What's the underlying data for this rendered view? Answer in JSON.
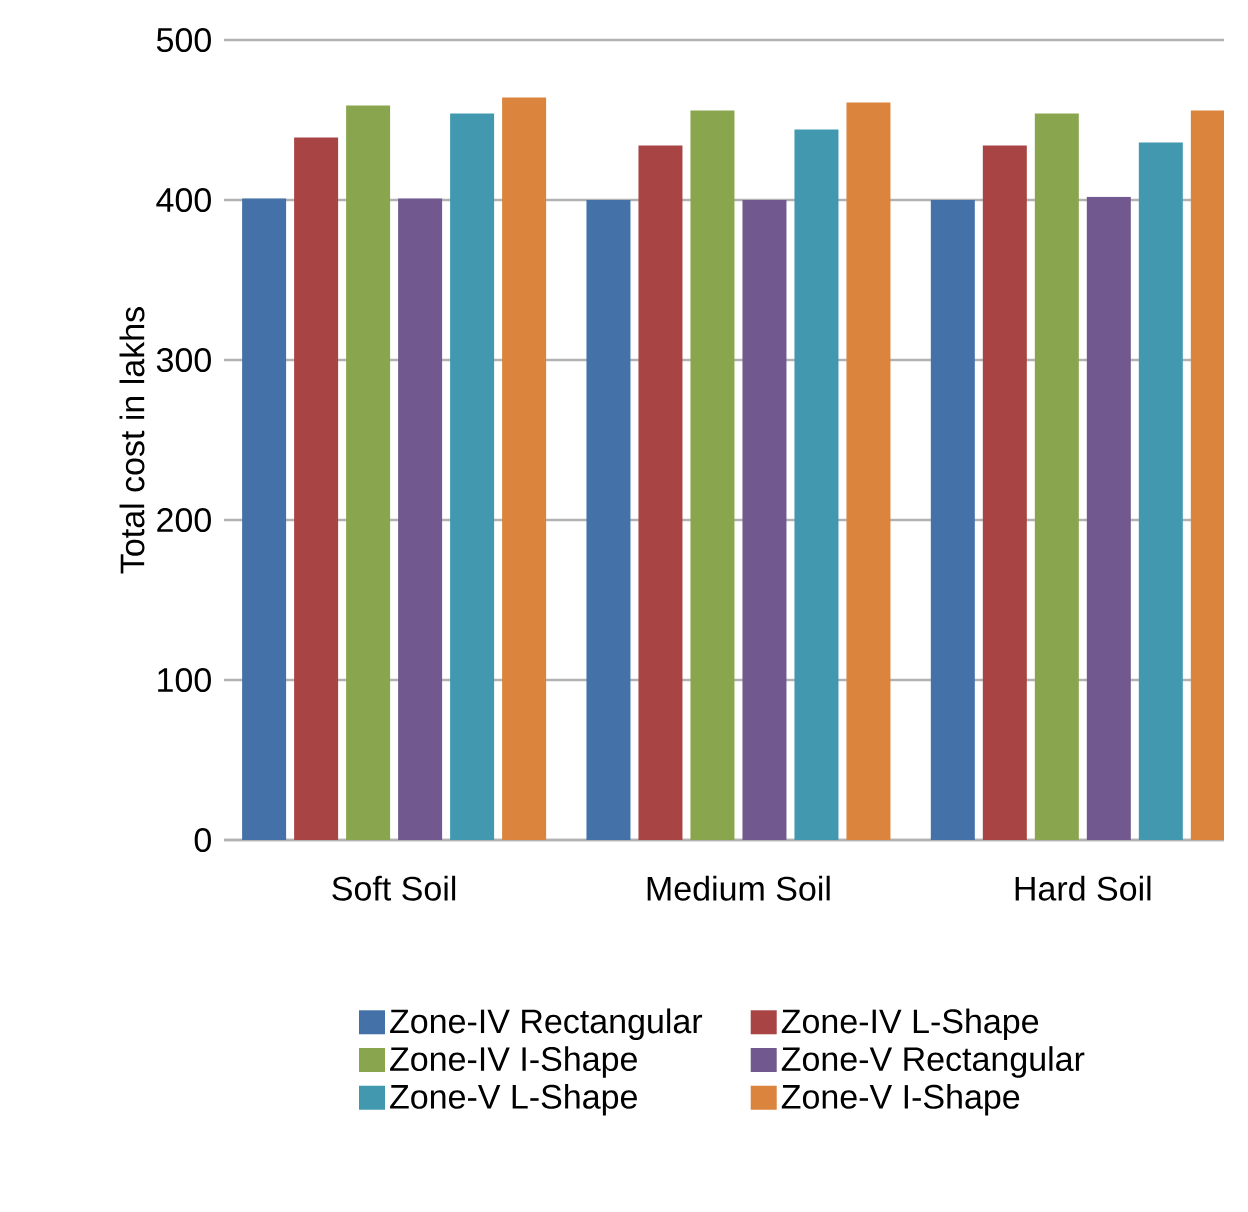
{
  "chart_data": {
    "type": "bar",
    "ylabel": "Total cost in lakhs",
    "categories": [
      "Soft Soil",
      "Medium Soil",
      "Hard Soil"
    ],
    "series": [
      {
        "name": "Zone-IV Rectangular",
        "color": "#4472a8",
        "values": [
          401,
          400,
          400
        ]
      },
      {
        "name": "Zone-IV L-Shape",
        "color": "#a84544",
        "values": [
          439,
          434,
          434
        ]
      },
      {
        "name": "Zone-IV I-Shape",
        "color": "#89a54e",
        "values": [
          459,
          456,
          454
        ]
      },
      {
        "name": "Zone-V Rectangular",
        "color": "#71588f",
        "values": [
          401,
          400,
          402
        ]
      },
      {
        "name": "Zone-V L-Shape",
        "color": "#4198af",
        "values": [
          454,
          444,
          436
        ]
      },
      {
        "name": "Zone-V I-Shape",
        "color": "#db843d",
        "values": [
          464,
          461,
          456
        ]
      }
    ],
    "ylim": [
      0,
      500
    ],
    "yticks": [
      0,
      100,
      200,
      300,
      400,
      500
    ],
    "grid": "y",
    "legend": "bottom"
  }
}
